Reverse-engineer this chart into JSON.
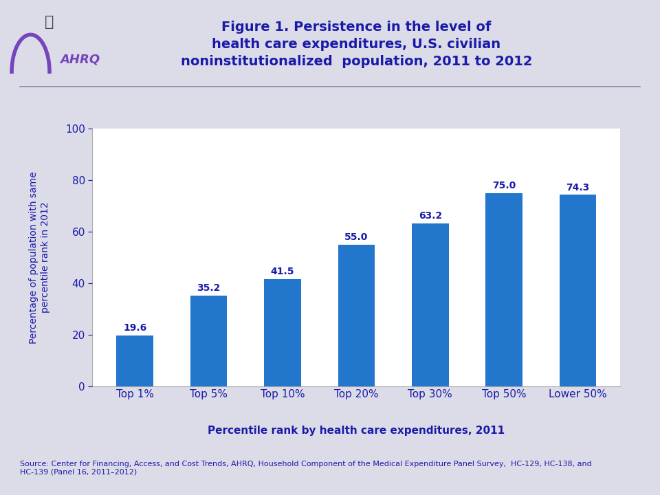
{
  "title_line1": "Figure 1. Persistence in the level of",
  "title_line2": "health care expenditures, U.S. civilian",
  "title_line3": "noninstitutionalized  population, 2011 to 2012",
  "categories": [
    "Top 1%",
    "Top 5%",
    "Top 10%",
    "Top 20%",
    "Top 30%",
    "Top 50%",
    "Lower 50%"
  ],
  "values": [
    19.6,
    35.2,
    41.5,
    55.0,
    63.2,
    75.0,
    74.3
  ],
  "bar_color": "#2277CC",
  "ylabel": "Percentage of population with same\npercentile rank in 2012",
  "xlabel": "Percentile rank by health care expenditures, 2011",
  "ylim": [
    0,
    100
  ],
  "yticks": [
    0,
    20,
    40,
    60,
    80,
    100
  ],
  "title_color": "#1a1aaa",
  "axis_color": "#1a1aaa",
  "label_color": "#1a1aaa",
  "tick_color": "#1a1aaa",
  "source_text": "Source: Center for Financing, Access, and Cost Trends, AHRQ, Household Component of the Medical Expenditure Panel Survey,  HC-129, HC-138, and\nHC-139 (Panel 16, 2011–2012)",
  "background_color": "#dcdce8",
  "plot_bg_color": "#ffffff",
  "separator_color": "#8888aa",
  "bar_label_fontsize": 10,
  "axis_label_fontsize": 10,
  "xlabel_fontsize": 11,
  "title_fontsize": 14,
  "source_fontsize": 8
}
